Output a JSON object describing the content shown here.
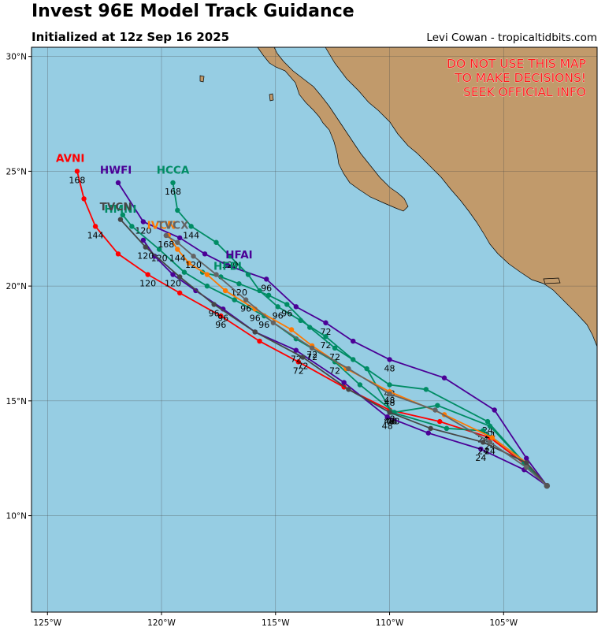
{
  "header": {
    "title": "Invest 96E Model Track Guidance",
    "subtitle": "Initialized at 12z Sep 16 2025",
    "credit": "Levi Cowan - tropicaltidbits.com"
  },
  "warning": [
    "DO NOT USE THIS MAP",
    "TO MAKE DECISIONS!",
    "SEEK OFFICIAL INFO"
  ],
  "colors": {
    "ocean": "#96cde3",
    "land": "#c19a6b",
    "AVNI": "#ff0000",
    "HWFI": "#4b0096",
    "HCCA": "#008c64",
    "HMNI": "#008c64",
    "HFAI": "#4b0096",
    "HFBI": "#008c64",
    "IVCN": "#ff7800",
    "TVCN": "#464646",
    "TVCX": "#646464"
  },
  "map": {
    "lon_range": [
      -125.7,
      -100.9
    ],
    "lat_range": [
      5.8,
      30.4
    ],
    "lat_ticks": [
      {
        "v": 30,
        "label": "30°N"
      },
      {
        "v": 25,
        "label": "25°N"
      },
      {
        "v": 20,
        "label": "20°N"
      },
      {
        "v": 15,
        "label": "15°N"
      },
      {
        "v": 10,
        "label": "10°N"
      }
    ],
    "lon_ticks": [
      {
        "v": -125,
        "label": "125°W"
      },
      {
        "v": -120,
        "label": "120°W"
      },
      {
        "v": -115,
        "label": "115°W"
      },
      {
        "v": -110,
        "label": "110°W"
      },
      {
        "v": -105,
        "label": "105°W"
      }
    ]
  },
  "chart_data": {
    "type": "map-tracks",
    "title": "Invest 96E Model Track Guidance",
    "subtitle": "Initialized at 12z Sep 16 2025",
    "origin": [
      -103.1,
      11.3
    ],
    "series": [
      {
        "name": "AVNI",
        "label": "AVNI",
        "labelPos": [
          -124.0,
          25.4
        ],
        "points": [
          [
            -103.1,
            11.3
          ],
          [
            -104.0,
            12.2
          ],
          [
            -105.6,
            13.4
          ],
          [
            -107.8,
            14.1
          ],
          [
            -110.0,
            14.6
          ],
          [
            -112.0,
            15.6
          ],
          [
            -114.0,
            16.7
          ],
          [
            -115.7,
            17.6
          ],
          [
            -117.4,
            18.7
          ],
          [
            -119.2,
            19.7
          ],
          [
            -120.6,
            20.5
          ],
          [
            -121.9,
            21.4
          ],
          [
            -122.9,
            22.6
          ],
          [
            -123.4,
            23.8
          ],
          [
            -123.7,
            25.0
          ]
        ],
        "labels": [
          {
            "i": 2,
            "t": "24"
          },
          {
            "i": 4,
            "t": "48"
          },
          {
            "i": 6,
            "t": "72"
          },
          {
            "i": 8,
            "t": "96"
          },
          {
            "i": 10,
            "t": "120"
          },
          {
            "i": 12,
            "t": "144"
          },
          {
            "i": 14,
            "t": "168"
          }
        ]
      },
      {
        "name": "HWFI",
        "label": "HWFI",
        "labelPos": [
          -122.0,
          24.9
        ],
        "points": [
          [
            -103.1,
            11.3
          ],
          [
            -104.0,
            12.5
          ],
          [
            -105.4,
            14.6
          ],
          [
            -107.6,
            16.0
          ],
          [
            -110.0,
            16.8
          ],
          [
            -111.6,
            17.6
          ],
          [
            -112.8,
            18.4
          ],
          [
            -114.1,
            19.1
          ],
          [
            -115.4,
            20.3
          ],
          [
            -117.1,
            20.9
          ],
          [
            -118.1,
            21.4
          ],
          [
            -119.2,
            22.1
          ],
          [
            -120.8,
            22.8
          ],
          [
            -121.9,
            24.5
          ]
        ],
        "labels": [
          {
            "i": 4,
            "t": "48"
          },
          {
            "i": 6,
            "t": "72"
          },
          {
            "i": 8,
            "t": "96"
          },
          {
            "i": 12,
            "t": "120"
          }
        ]
      },
      {
        "name": "HCCA",
        "label": "HCCA",
        "labelPos": [
          -119.5,
          24.9
        ],
        "points": [
          [
            -103.1,
            11.3
          ],
          [
            -104.1,
            12.3
          ],
          [
            -105.7,
            14.1
          ],
          [
            -108.4,
            15.5
          ],
          [
            -110.0,
            15.7
          ],
          [
            -111.6,
            16.8
          ],
          [
            -112.8,
            17.8
          ],
          [
            -113.9,
            18.5
          ],
          [
            -114.9,
            19.1
          ],
          [
            -115.7,
            19.8
          ],
          [
            -116.2,
            20.5
          ],
          [
            -117.0,
            21.3
          ],
          [
            -117.6,
            21.9
          ],
          [
            -118.7,
            22.6
          ],
          [
            -119.3,
            23.3
          ],
          [
            -119.5,
            24.5
          ]
        ],
        "labels": [
          {
            "i": 2,
            "t": "24"
          },
          {
            "i": 4,
            "t": "48"
          },
          {
            "i": 6,
            "t": "72"
          },
          {
            "i": 8,
            "t": "96"
          },
          {
            "i": 11,
            "t": "120"
          },
          {
            "i": 13,
            "t": "144"
          },
          {
            "i": 15,
            "t": "168"
          }
        ]
      },
      {
        "name": "HMNI",
        "label": "HMNI",
        "labelPos": [
          -121.8,
          23.2
        ],
        "points": [
          [
            -103.1,
            11.3
          ],
          [
            -104.0,
            12.2
          ],
          [
            -105.6,
            13.9
          ],
          [
            -107.9,
            14.8
          ],
          [
            -109.8,
            14.5
          ],
          [
            -111.3,
            15.7
          ],
          [
            -112.4,
            16.7
          ],
          [
            -114.1,
            17.7
          ],
          [
            -115.5,
            18.7
          ],
          [
            -116.8,
            19.4
          ],
          [
            -118.0,
            20.0
          ],
          [
            -119.0,
            20.6
          ],
          [
            -120.1,
            21.6
          ],
          [
            -121.3,
            22.6
          ],
          [
            -121.7,
            23.1
          ]
        ],
        "labels": [
          {
            "i": 2,
            "t": "24"
          },
          {
            "i": 4,
            "t": "48"
          },
          {
            "i": 6,
            "t": "72"
          },
          {
            "i": 8,
            "t": "96"
          },
          {
            "i": 12,
            "t": "120"
          }
        ]
      },
      {
        "name": "HFAI",
        "label": "HFAI",
        "labelPos": [
          -116.6,
          21.2
        ],
        "points": [
          [
            -103.1,
            11.3
          ],
          [
            -104.1,
            12.0
          ],
          [
            -106.0,
            12.9
          ],
          [
            -108.3,
            13.6
          ],
          [
            -110.1,
            14.3
          ],
          [
            -112.0,
            15.8
          ],
          [
            -114.1,
            17.2
          ],
          [
            -115.9,
            18.0
          ],
          [
            -117.3,
            19.0
          ],
          [
            -118.5,
            19.8
          ],
          [
            -119.5,
            20.5
          ],
          [
            -120.3,
            21.3
          ],
          [
            -120.8,
            22.0
          ]
        ],
        "labels": [
          {
            "i": 2,
            "t": "24"
          },
          {
            "i": 4,
            "t": "48"
          },
          {
            "i": 6,
            "t": "72"
          },
          {
            "i": 8,
            "t": "96"
          },
          {
            "i": 10,
            "t": "120"
          }
        ]
      },
      {
        "name": "HFBI",
        "label": "HFBI",
        "labelPos": [
          -117.1,
          20.7
        ],
        "points": [
          [
            -103.1,
            11.3
          ],
          [
            -104.0,
            12.3
          ],
          [
            -105.9,
            13.7
          ],
          [
            -107.5,
            13.8
          ],
          [
            -109.9,
            14.5
          ],
          [
            -111.0,
            16.4
          ],
          [
            -112.4,
            17.3
          ],
          [
            -113.5,
            18.2
          ],
          [
            -114.5,
            19.2
          ],
          [
            -115.3,
            19.6
          ],
          [
            -116.6,
            20.1
          ],
          [
            -117.4,
            20.4
          ],
          [
            -118.2,
            20.6
          ]
        ],
        "labels": [
          {
            "i": 2,
            "t": "24"
          },
          {
            "i": 4,
            "t": "48"
          },
          {
            "i": 6,
            "t": "72"
          },
          {
            "i": 8,
            "t": "96"
          },
          {
            "i": 10,
            "t": "120"
          }
        ]
      },
      {
        "name": "IVCN",
        "label": "IVCN",
        "labelPos": [
          -120.0,
          22.5
        ],
        "points": [
          [
            -103.1,
            11.3
          ],
          [
            -104.0,
            12.3
          ],
          [
            -105.5,
            13.4
          ],
          [
            -107.6,
            14.4
          ],
          [
            -110.0,
            15.4
          ],
          [
            -111.9,
            16.4
          ],
          [
            -113.4,
            17.4
          ],
          [
            -114.3,
            18.1
          ],
          [
            -115.9,
            19.0
          ],
          [
            -117.2,
            19.8
          ],
          [
            -118.0,
            20.5
          ],
          [
            -118.8,
            21.0
          ],
          [
            -119.3,
            21.6
          ],
          [
            -119.7,
            22.2
          ]
        ],
        "labels": [
          {
            "i": 4,
            "t": "48"
          },
          {
            "i": 6,
            "t": "72"
          },
          {
            "i": 8,
            "t": "96"
          },
          {
            "i": 12,
            "t": "144"
          }
        ]
      },
      {
        "name": "TVCN",
        "label": "TVCN",
        "labelPos": [
          -122.0,
          23.3
        ],
        "points": [
          [
            -103.1,
            11.3
          ],
          [
            -104.0,
            12.3
          ],
          [
            -105.9,
            13.2
          ],
          [
            -108.2,
            13.8
          ],
          [
            -110.0,
            14.5
          ],
          [
            -111.8,
            15.5
          ],
          [
            -113.8,
            16.9
          ],
          [
            -115.9,
            18.0
          ],
          [
            -117.7,
            19.2
          ],
          [
            -119.2,
            20.4
          ],
          [
            -120.7,
            21.7
          ],
          [
            -121.8,
            22.9
          ]
        ],
        "labels": [
          {
            "i": 2,
            "t": "24"
          },
          {
            "i": 4,
            "t": "48"
          },
          {
            "i": 6,
            "t": "72"
          },
          {
            "i": 8,
            "t": "96"
          },
          {
            "i": 10,
            "t": "120"
          }
        ]
      },
      {
        "name": "TVCX",
        "label": "TVCX",
        "labelPos": [
          -119.5,
          22.5
        ],
        "points": [
          [
            -103.1,
            11.3
          ],
          [
            -104.0,
            12.1
          ],
          [
            -105.6,
            13.2
          ],
          [
            -108.0,
            14.6
          ],
          [
            -110.0,
            15.3
          ],
          [
            -111.8,
            16.4
          ],
          [
            -113.4,
            17.3
          ],
          [
            -115.1,
            18.4
          ],
          [
            -116.3,
            19.4
          ],
          [
            -117.6,
            20.5
          ],
          [
            -118.6,
            21.3
          ],
          [
            -119.3,
            21.9
          ],
          [
            -119.8,
            22.2
          ]
        ],
        "labels": [
          {
            "i": 2,
            "t": "24"
          },
          {
            "i": 4,
            "t": "48"
          },
          {
            "i": 6,
            "t": "72"
          },
          {
            "i": 8,
            "t": "96"
          },
          {
            "i": 10,
            "t": "120"
          },
          {
            "i": 12,
            "t": "168"
          }
        ]
      }
    ]
  }
}
